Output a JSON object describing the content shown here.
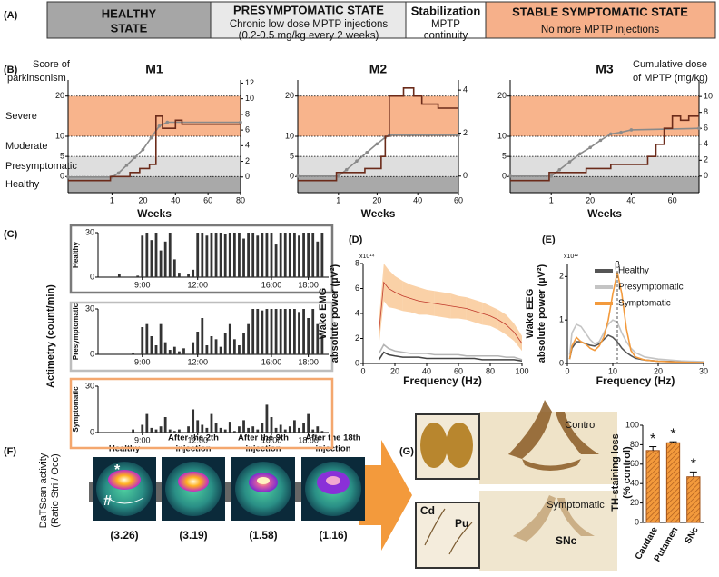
{
  "panel_labels": [
    "(A)",
    "(B)",
    "(C)",
    "(D)",
    "(E)",
    "(F)",
    "(G)"
  ],
  "stages": [
    {
      "title": [
        "HEALTHY",
        "STATE"
      ]
    },
    {
      "title": [
        "PRESYMPTOMATIC STATE"
      ],
      "lines": [
        "Chronic low dose MPTP injections",
        "(0.2-0.5 mg/kg every 2 weeks)"
      ]
    },
    {
      "title": [
        "Stabilization"
      ],
      "lines": [
        "MPTP",
        "continuity"
      ]
    },
    {
      "title": [
        "STABLE SYMPTOMATIC STATE"
      ],
      "lines": [
        "No more MPTP injections"
      ]
    }
  ],
  "panel_f": {
    "ylabel": [
      "DaTScan activity",
      "(Ratio Stri / Occ)"
    ],
    "marks": [
      "*",
      "#"
    ],
    "scans": [
      {
        "title": [
          "Healthy"
        ],
        "ratio": "(3.26)"
      },
      {
        "title": [
          "After the 2th",
          "injection"
        ],
        "ratio": "(3.19)"
      },
      {
        "title": [
          "After the 9th",
          "injection"
        ],
        "ratio": "(1.58)"
      },
      {
        "title": [
          "After the 18th",
          "injection"
        ],
        "ratio": "(1.16)"
      }
    ]
  },
  "panel_g": {
    "control": "Control",
    "symptomatic": "Symptomatic",
    "cd": "Cd",
    "pu": "Pu",
    "snc": "SNc"
  },
  "chart_data": [
    {
      "type": "line",
      "title": "M1",
      "xlabel": "Weeks",
      "ylabel": [
        "Score of",
        "parkinsonism"
      ],
      "xlim": [
        -26,
        80
      ],
      "xticks": [
        1,
        20,
        40,
        60,
        80
      ],
      "ylim": [
        -4,
        24
      ],
      "yticks": [
        0,
        5,
        10,
        20
      ],
      "y2lim": [
        -2,
        12.4
      ],
      "y2ticks": [
        0,
        2,
        4,
        6,
        8,
        10,
        12
      ],
      "grid": true,
      "bands": [
        {
          "label": "Severe",
          "from": 10,
          "to": 20,
          "color": "#f8b48c"
        },
        {
          "label": "Moderate",
          "from": 5,
          "to": 10,
          "color": "#ffffff"
        },
        {
          "label": "Presymptomatic",
          "from": 0,
          "to": 5,
          "color": "#dedede"
        },
        {
          "label": "Healthy",
          "from": -4,
          "to": 0,
          "color": "#a9a9a9"
        }
      ],
      "series": [
        {
          "color": "#8a8a8a",
          "axis": "y2",
          "marker": true,
          "x": [
            -26,
            1,
            5,
            10,
            15,
            20,
            25,
            30,
            35,
            80
          ],
          "values": [
            0,
            0,
            0.5,
            1.5,
            2.5,
            3.5,
            5,
            6.5,
            7,
            7
          ]
        },
        {
          "color": "#6b2b1a",
          "axis": "y",
          "x": [
            -26,
            0,
            0,
            12,
            12,
            18,
            18,
            24,
            24,
            28,
            28,
            32,
            32,
            40,
            40,
            44,
            44,
            80
          ],
          "values": [
            -1,
            -1,
            0,
            0,
            1,
            1,
            2,
            2,
            3,
            3,
            15,
            15,
            12,
            12,
            14,
            14,
            13,
            13
          ]
        }
      ]
    },
    {
      "type": "line",
      "title": "M2",
      "xlabel": "Weeks",
      "xlim": [
        -19,
        60
      ],
      "xticks": [
        1,
        20,
        40,
        60
      ],
      "ylim": [
        -4,
        24
      ],
      "yticks": [
        0,
        5,
        10,
        20
      ],
      "y2lim": [
        -0.77,
        4.47
      ],
      "y2ticks": [
        0,
        2,
        4
      ],
      "grid": true,
      "bands": [
        {
          "from": 10,
          "to": 20,
          "color": "#f8b48c"
        },
        {
          "from": 5,
          "to": 10,
          "color": "#ffffff"
        },
        {
          "from": 0,
          "to": 5,
          "color": "#dedede"
        },
        {
          "from": -4,
          "to": 0,
          "color": "#a9a9a9"
        }
      ],
      "series": [
        {
          "color": "#8a8a8a",
          "axis": "y2",
          "marker": true,
          "x": [
            -19,
            1,
            5,
            10,
            15,
            20,
            24,
            26,
            60
          ],
          "values": [
            0,
            0,
            0.3,
            0.7,
            1.1,
            1.5,
            1.8,
            1.9,
            1.9
          ]
        },
        {
          "color": "#6b2b1a",
          "axis": "y",
          "x": [
            -19,
            0,
            0,
            14,
            14,
            22,
            22,
            24,
            24,
            26,
            26,
            33,
            33,
            38,
            38,
            42,
            42,
            50,
            50,
            60
          ],
          "values": [
            -1,
            -1,
            1,
            1,
            2,
            2,
            5,
            5,
            10,
            10,
            20,
            20,
            22,
            22,
            20,
            20,
            18,
            18,
            17,
            17
          ]
        }
      ]
    },
    {
      "type": "line",
      "title": "M3",
      "xlabel": "Weeks",
      "y2label": [
        "Cumulative dose",
        "of MPTP (mg/kg)"
      ],
      "xlim": [
        -19,
        73
      ],
      "xticks": [
        1,
        20,
        40,
        60
      ],
      "ylim": [
        -4,
        24
      ],
      "yticks": [
        0,
        5,
        10,
        20
      ],
      "y2lim": [
        -2.07,
        12.07
      ],
      "y2ticks": [
        0,
        2,
        4,
        6,
        8,
        10
      ],
      "grid": true,
      "bands": [
        {
          "from": 10,
          "to": 20,
          "color": "#f8b48c"
        },
        {
          "from": 5,
          "to": 10,
          "color": "#ffffff"
        },
        {
          "from": 0,
          "to": 5,
          "color": "#dedede"
        },
        {
          "from": -4,
          "to": 0,
          "color": "#a9a9a9"
        }
      ],
      "series": [
        {
          "color": "#8a8a8a",
          "axis": "y2",
          "marker": true,
          "x": [
            -19,
            1,
            5,
            10,
            15,
            20,
            25,
            30,
            35,
            40,
            73
          ],
          "values": [
            0,
            0,
            0.8,
            1.8,
            2.8,
            3.6,
            4.5,
            5.3,
            5.5,
            5.8,
            6
          ]
        },
        {
          "color": "#6b2b1a",
          "axis": "y",
          "x": [
            -19,
            0,
            0,
            18,
            18,
            30,
            30,
            48,
            48,
            52,
            52,
            56,
            56,
            60,
            60,
            64,
            64,
            68,
            68,
            73
          ],
          "values": [
            -1,
            -1,
            1,
            1,
            2,
            2,
            3,
            3,
            5,
            5,
            8,
            8,
            12,
            12,
            15,
            15,
            14,
            14,
            15,
            15
          ]
        }
      ]
    },
    {
      "type": "bar",
      "title": "Healthy",
      "ylabel": [
        "Actimetry (count/min)"
      ],
      "color": "#333333",
      "frame_color": "#7a7a7a",
      "xlim": [
        6.6,
        19.1
      ],
      "ylim": [
        0,
        30
      ],
      "yticks": [
        0,
        30
      ],
      "xticks": [
        {
          "value": 9,
          "label": "9:00"
        },
        {
          "value": 12,
          "label": "12:00"
        },
        {
          "value": 16,
          "label": "16:00"
        },
        {
          "value": 18,
          "label": "18:00"
        }
      ],
      "x": [
        7,
        7.25,
        7.5,
        7.75,
        8,
        8.25,
        8.5,
        8.75,
        9,
        9.25,
        9.5,
        9.75,
        10,
        10.25,
        10.5,
        10.75,
        11,
        11.25,
        11.5,
        11.75,
        12,
        12.25,
        12.5,
        12.75,
        13,
        13.25,
        13.5,
        13.75,
        14,
        14.25,
        14.5,
        14.75,
        15,
        15.25,
        15.5,
        15.75,
        16,
        16.25,
        16.5,
        16.75,
        17,
        17.25,
        17.5,
        17.75,
        18,
        18.25,
        18.5,
        18.75
      ],
      "values": [
        0,
        0,
        0,
        2,
        0,
        0,
        0,
        1,
        28,
        30,
        25,
        30,
        18,
        24,
        30,
        12,
        3,
        0,
        2,
        5,
        30,
        30,
        28,
        30,
        30,
        30,
        29,
        30,
        30,
        30,
        26,
        30,
        30,
        28,
        30,
        30,
        30,
        22,
        30,
        30,
        30,
        30,
        28,
        30,
        30,
        30,
        24,
        30
      ]
    },
    {
      "type": "bar",
      "title": "Presymptomatic",
      "color": "#333333",
      "frame_color": "#bdbdbd",
      "xlim": [
        6.6,
        19.1
      ],
      "ylim": [
        0,
        30
      ],
      "yticks": [
        0,
        30
      ],
      "xticks": [
        {
          "value": 9,
          "label": "9:00"
        },
        {
          "value": 12,
          "label": "12:00"
        },
        {
          "value": 16,
          "label": "16:00"
        },
        {
          "value": 18,
          "label": "18:00"
        }
      ],
      "x": [
        7,
        7.25,
        7.5,
        7.75,
        8,
        8.25,
        8.5,
        8.75,
        9,
        9.25,
        9.5,
        9.75,
        10,
        10.25,
        10.5,
        10.75,
        11,
        11.25,
        11.5,
        11.75,
        12,
        12.25,
        12.5,
        12.75,
        13,
        13.25,
        13.5,
        13.75,
        14,
        14.25,
        14.5,
        14.75,
        15,
        15.25,
        15.5,
        15.75,
        16,
        16.25,
        16.5,
        16.75,
        17,
        17.25,
        17.5,
        17.75,
        18,
        18.25,
        18.5,
        18.75
      ],
      "values": [
        0,
        0,
        0,
        0,
        0,
        0,
        1,
        0,
        18,
        20,
        12,
        6,
        20,
        8,
        3,
        5,
        2,
        4,
        0,
        8,
        15,
        24,
        6,
        12,
        10,
        5,
        14,
        20,
        10,
        6,
        14,
        20,
        30,
        30,
        29,
        30,
        30,
        30,
        30,
        30,
        30,
        30,
        28,
        30,
        24,
        30,
        20,
        12
      ]
    },
    {
      "type": "bar",
      "title": "Symptomatic",
      "color": "#333333",
      "frame_color": "#f4a76e",
      "xlim": [
        6.6,
        19.1
      ],
      "ylim": [
        0,
        30
      ],
      "yticks": [
        0,
        30
      ],
      "xticks": [
        {
          "value": 9,
          "label": "9:00"
        },
        {
          "value": 12,
          "label": "12:00"
        },
        {
          "value": 16,
          "label": "16:00"
        },
        {
          "value": 18,
          "label": "18:00"
        }
      ],
      "x": [
        7,
        7.25,
        7.5,
        7.75,
        8,
        8.25,
        8.5,
        8.75,
        9,
        9.25,
        9.5,
        9.75,
        10,
        10.25,
        10.5,
        10.75,
        11,
        11.25,
        11.5,
        11.75,
        12,
        12.25,
        12.5,
        12.75,
        13,
        13.25,
        13.5,
        13.75,
        14,
        14.25,
        14.5,
        14.75,
        15,
        15.25,
        15.5,
        15.75,
        16,
        16.25,
        16.5,
        16.75,
        17,
        17.25,
        17.5,
        17.75,
        18,
        18.25,
        18.5,
        18.75
      ],
      "values": [
        0,
        0,
        0,
        0,
        0,
        0,
        2,
        0,
        5,
        12,
        3,
        2,
        4,
        10,
        2,
        1,
        2,
        0,
        4,
        15,
        8,
        5,
        3,
        12,
        6,
        3,
        2,
        7,
        1,
        4,
        8,
        3,
        4,
        2,
        6,
        18,
        10,
        3,
        5,
        2,
        4,
        8,
        3,
        6,
        12,
        2,
        4,
        1
      ]
    },
    {
      "type": "line",
      "xlabel": "Frequency (Hz)",
      "ylabel": [
        "Wake EMG",
        "absolute power (µV²)"
      ],
      "scale_label": "x10¹⁴",
      "xlim": [
        0,
        100
      ],
      "xticks": [
        0,
        20,
        40,
        60,
        80,
        100
      ],
      "ylim": [
        0,
        8
      ],
      "yticks": [
        0,
        2,
        4,
        6,
        8
      ],
      "x": [
        10,
        13,
        16,
        20,
        25,
        30,
        35,
        40,
        45,
        50,
        55,
        60,
        65,
        70,
        75,
        80,
        85,
        90,
        95,
        100
      ],
      "series": [
        {
          "color": "#444444",
          "values": [
            0.3,
            0.9,
            0.7,
            0.6,
            0.5,
            0.5,
            0.5,
            0.4,
            0.4,
            0.4,
            0.4,
            0.4,
            0.4,
            0.4,
            0.3,
            0.3,
            0.3,
            0.3,
            0.3,
            0.2
          ]
        },
        {
          "color": "#b5b5b5",
          "values": [
            0.8,
            1.5,
            1.2,
            1.0,
            0.9,
            0.8,
            0.8,
            0.8,
            0.7,
            0.7,
            0.7,
            0.7,
            0.6,
            0.6,
            0.6,
            0.6,
            0.6,
            0.5,
            0.5,
            0.3
          ]
        },
        {
          "color": "#f39a3c",
          "values": [
            2.5,
            6.5,
            6.0,
            5.7,
            5.4,
            5.2,
            5.0,
            4.9,
            4.8,
            4.7,
            4.6,
            4.5,
            4.4,
            4.2,
            4.0,
            3.8,
            3.5,
            3.1,
            2.5,
            1.6
          ],
          "errors": [
            1.0,
            1.5,
            1.5,
            1.3,
            1.2,
            1.1,
            1.1,
            1.0,
            1.0,
            1.0,
            1.0,
            0.9,
            0.9,
            0.9,
            0.9,
            0.8,
            0.8,
            0.8,
            0.7,
            0.6
          ]
        }
      ]
    },
    {
      "type": "line",
      "xlabel": "Frequency (Hz)",
      "ylabel": [
        "Wake EEG",
        "absolute power (µV²)"
      ],
      "scale_label": "x10¹²",
      "legend": "upper right",
      "annotations": [
        {
          "text": "β",
          "x": 11
        }
      ],
      "xlim": [
        0,
        30
      ],
      "xticks": [
        0,
        10,
        20,
        30
      ],
      "ylim": [
        0,
        2.3
      ],
      "yticks": [
        0,
        1,
        2
      ],
      "x": [
        0.5,
        1,
        2,
        3,
        4,
        5,
        6,
        7,
        8,
        9,
        10,
        11,
        12,
        13,
        14,
        15,
        17,
        20,
        25,
        30
      ],
      "series": [
        {
          "name": "Healthy",
          "color": "#555555",
          "values": [
            0.1,
            0.35,
            0.5,
            0.5,
            0.45,
            0.42,
            0.4,
            0.45,
            0.55,
            0.65,
            0.6,
            0.5,
            0.35,
            0.25,
            0.18,
            0.12,
            0.08,
            0.05,
            0.04,
            0.03
          ]
        },
        {
          "name": "Presymptomatic",
          "color": "#c4c4c4",
          "values": [
            0.2,
            0.7,
            0.9,
            0.85,
            0.7,
            0.55,
            0.45,
            0.5,
            0.7,
            0.9,
            1.0,
            0.95,
            0.7,
            0.5,
            0.35,
            0.25,
            0.15,
            0.1,
            0.06,
            0.04
          ]
        },
        {
          "name": "Symptomatic",
          "color": "#f39a3c",
          "values": [
            0.1,
            0.4,
            0.6,
            0.5,
            0.45,
            0.35,
            0.3,
            0.4,
            0.6,
            1.0,
            1.6,
            2.1,
            1.6,
            0.8,
            0.3,
            0.15,
            0.08,
            0.05,
            0.03,
            0.02
          ]
        }
      ]
    },
    {
      "type": "bar",
      "ylabel": [
        "TH-staining loss",
        "(% control)"
      ],
      "color": "#f39a3c",
      "categories": [
        "Caudate",
        "Putamen",
        "SNc"
      ],
      "values": [
        74,
        82,
        47
      ],
      "errors": [
        4,
        1,
        5
      ],
      "significance": [
        "*",
        "*",
        "*"
      ],
      "ylim": [
        0,
        100
      ],
      "yticks": [
        0,
        20,
        40,
        60,
        80,
        100
      ]
    }
  ]
}
